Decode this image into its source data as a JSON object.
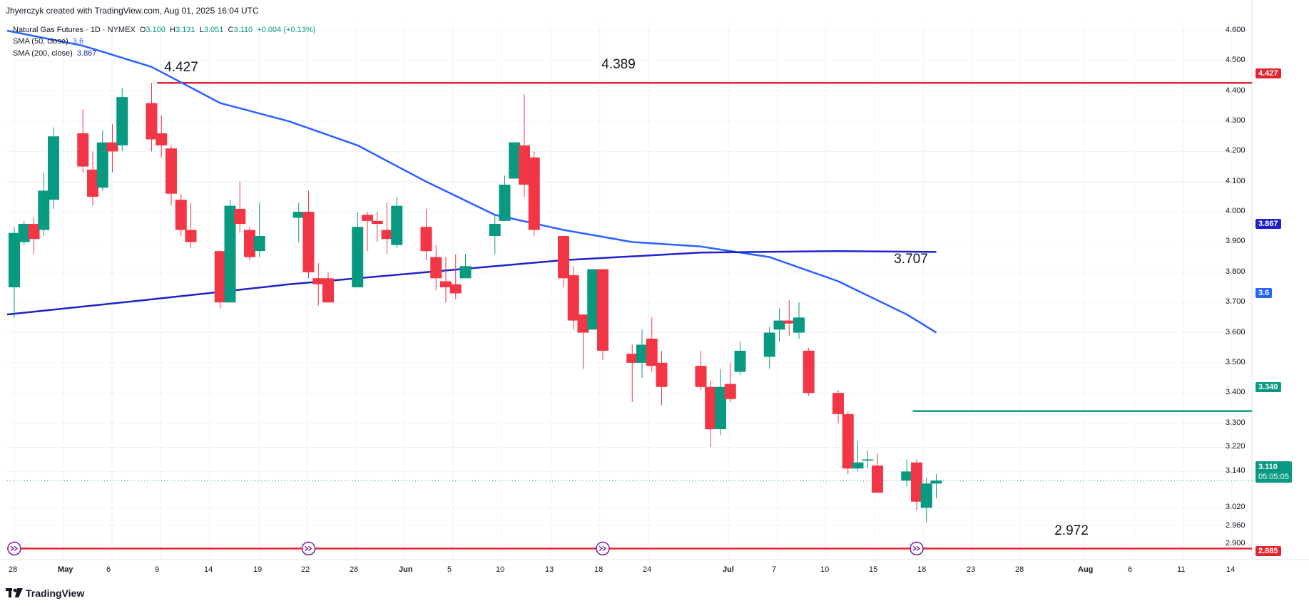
{
  "header": {
    "attribution": "Jhyerczyk created with TradingView.com, Aug 01, 2025 16:04 UTC",
    "symbol": "Natural Gas Futures · 1D · NYMEX",
    "o_label": "O",
    "o_value": "3.100",
    "h_label": "H",
    "h_value": "3.131",
    "l_label": "L",
    "l_value": "3.051",
    "c_label": "C",
    "c_value": "3.110",
    "change": "+0.004 (+0.13%)",
    "sma50_label": "SMA (50, close)",
    "sma50_value": "3.6",
    "sma200_label": "SMA (200, close)",
    "sma200_value": "3.867"
  },
  "footer": {
    "logo_text": "TradingView"
  },
  "colors": {
    "up": "#089981",
    "down": "#f23645",
    "sma50": "#2962ff",
    "sma200": "#1e22c8",
    "level": "#e1252f",
    "target": "#089981"
  },
  "badges": {
    "b4427": "4.427",
    "b3867": "3.867",
    "b36": "3.6",
    "b3340": "3.340",
    "b3110": "3.110",
    "countdown": "05:05:05",
    "b2885": "2.885"
  },
  "annotations": {
    "a1": "4.427",
    "a2": "4.389",
    "a3": "3.707",
    "a4": "2.972"
  },
  "chart_data": {
    "type": "candlestick",
    "ylim": [
      2.885,
      4.65
    ],
    "y_ticks": [
      "4.600",
      "4.500",
      "4.400",
      "4.300",
      "4.200",
      "4.100",
      "4.000",
      "3.900",
      "3.800",
      "3.700",
      "3.600",
      "3.500",
      "3.400",
      "3.300",
      "3.220",
      "3.140",
      "3.020",
      "2.960",
      "2.900"
    ],
    "x_ticks": [
      "28",
      "May",
      "6",
      "9",
      "14",
      "19",
      "22",
      "28",
      "Jun",
      "5",
      "10",
      "13",
      "18",
      "24",
      "Jul",
      "7",
      "10",
      "15",
      "18",
      "23",
      "28",
      "Aug",
      "6",
      "11",
      "14"
    ],
    "candles": [
      {
        "date": "2025-04-28",
        "o": 3.75,
        "h": 3.95,
        "l": 3.65,
        "c": 3.93
      },
      {
        "date": "2025-04-29",
        "o": 3.9,
        "h": 3.97,
        "l": 3.89,
        "c": 3.96
      },
      {
        "date": "2025-04-30",
        "o": 3.96,
        "h": 3.98,
        "l": 3.86,
        "c": 3.91
      },
      {
        "date": "2025-05-01",
        "o": 3.94,
        "h": 4.13,
        "l": 3.92,
        "c": 4.07
      },
      {
        "date": "2025-05-02",
        "o": 4.04,
        "h": 4.28,
        "l": 4.01,
        "c": 4.25
      },
      {
        "date": "2025-05-05",
        "o": 4.26,
        "h": 4.34,
        "l": 4.13,
        "c": 4.15
      },
      {
        "date": "2025-05-06",
        "o": 4.14,
        "h": 4.2,
        "l": 4.02,
        "c": 4.05
      },
      {
        "date": "2025-05-07",
        "o": 4.08,
        "h": 4.27,
        "l": 4.07,
        "c": 4.23
      },
      {
        "date": "2025-05-08",
        "o": 4.23,
        "h": 4.29,
        "l": 4.13,
        "c": 4.2
      },
      {
        "date": "2025-05-09",
        "o": 4.22,
        "h": 4.41,
        "l": 4.2,
        "c": 4.38
      },
      {
        "date": "2025-05-12",
        "o": 4.36,
        "h": 4.427,
        "l": 4.2,
        "c": 4.24
      },
      {
        "date": "2025-05-13",
        "o": 4.26,
        "h": 4.32,
        "l": 4.18,
        "c": 4.22
      },
      {
        "date": "2025-05-14",
        "o": 4.21,
        "h": 4.22,
        "l": 4.02,
        "c": 4.06
      },
      {
        "date": "2025-05-15",
        "o": 4.04,
        "h": 4.06,
        "l": 3.92,
        "c": 3.94
      },
      {
        "date": "2025-05-16",
        "o": 3.94,
        "h": 4.03,
        "l": 3.88,
        "c": 3.9
      },
      {
        "date": "2025-05-19",
        "o": 3.87,
        "h": 3.87,
        "l": 3.68,
        "c": 3.7
      },
      {
        "date": "2025-05-20",
        "o": 3.7,
        "h": 4.04,
        "l": 3.7,
        "c": 4.02
      },
      {
        "date": "2025-05-21",
        "o": 4.01,
        "h": 4.1,
        "l": 3.93,
        "c": 3.96
      },
      {
        "date": "2025-05-22",
        "o": 3.94,
        "h": 3.95,
        "l": 3.84,
        "c": 3.85
      },
      {
        "date": "2025-05-23",
        "o": 3.87,
        "h": 4.03,
        "l": 3.85,
        "c": 3.92
      },
      {
        "date": "2025-05-27",
        "o": 3.98,
        "h": 4.03,
        "l": 3.9,
        "c": 4.0
      },
      {
        "date": "2025-05-28",
        "o": 4.0,
        "h": 4.07,
        "l": 3.78,
        "c": 3.8
      },
      {
        "date": "2025-05-29",
        "o": 3.78,
        "h": 3.83,
        "l": 3.69,
        "c": 3.76
      },
      {
        "date": "2025-05-30",
        "o": 3.78,
        "h": 3.8,
        "l": 3.7,
        "c": 3.7
      },
      {
        "date": "2025-06-02",
        "o": 3.75,
        "h": 4.0,
        "l": 3.75,
        "c": 3.95
      },
      {
        "date": "2025-06-03",
        "o": 3.99,
        "h": 4.0,
        "l": 3.87,
        "c": 3.97
      },
      {
        "date": "2025-06-04",
        "o": 3.97,
        "h": 4.0,
        "l": 3.9,
        "c": 3.96
      },
      {
        "date": "2025-06-05",
        "o": 3.94,
        "h": 4.03,
        "l": 3.86,
        "c": 3.91
      },
      {
        "date": "2025-06-06",
        "o": 3.89,
        "h": 4.05,
        "l": 3.88,
        "c": 4.02
      },
      {
        "date": "2025-06-09",
        "o": 3.95,
        "h": 4.01,
        "l": 3.84,
        "c": 3.87
      },
      {
        "date": "2025-06-10",
        "o": 3.85,
        "h": 3.89,
        "l": 3.74,
        "c": 3.78
      },
      {
        "date": "2025-06-11",
        "o": 3.77,
        "h": 3.85,
        "l": 3.7,
        "c": 3.75
      },
      {
        "date": "2025-06-12",
        "o": 3.76,
        "h": 3.86,
        "l": 3.71,
        "c": 3.73
      },
      {
        "date": "2025-06-13",
        "o": 3.78,
        "h": 3.86,
        "l": 3.78,
        "c": 3.82
      },
      {
        "date": "2025-06-16",
        "o": 3.92,
        "h": 3.99,
        "l": 3.86,
        "c": 3.96
      },
      {
        "date": "2025-06-17",
        "o": 3.97,
        "h": 4.12,
        "l": 3.97,
        "c": 4.09
      },
      {
        "date": "2025-06-18",
        "o": 4.11,
        "h": 4.23,
        "l": 4.11,
        "c": 4.23
      },
      {
        "date": "2025-06-19",
        "o": 4.22,
        "h": 4.389,
        "l": 4.05,
        "c": 4.09
      },
      {
        "date": "2025-06-20",
        "o": 4.18,
        "h": 4.2,
        "l": 3.92,
        "c": 3.94
      },
      {
        "date": "2025-06-23",
        "o": 3.92,
        "h": 3.92,
        "l": 3.75,
        "c": 3.78
      },
      {
        "date": "2025-06-24",
        "o": 3.79,
        "h": 3.82,
        "l": 3.61,
        "c": 3.64
      },
      {
        "date": "2025-06-25",
        "o": 3.66,
        "h": 3.66,
        "l": 3.48,
        "c": 3.6
      },
      {
        "date": "2025-06-26",
        "o": 3.61,
        "h": 3.81,
        "l": 3.61,
        "c": 3.81
      },
      {
        "date": "2025-06-27",
        "o": 3.81,
        "h": 3.81,
        "l": 3.51,
        "c": 3.54
      },
      {
        "date": "2025-06-30",
        "o": 3.53,
        "h": 3.56,
        "l": 3.37,
        "c": 3.5
      },
      {
        "date": "2025-07-01",
        "o": 3.5,
        "h": 3.61,
        "l": 3.45,
        "c": 3.56
      },
      {
        "date": "2025-07-02",
        "o": 3.58,
        "h": 3.65,
        "l": 3.47,
        "c": 3.49
      },
      {
        "date": "2025-07-03",
        "o": 3.5,
        "h": 3.54,
        "l": 3.36,
        "c": 3.42
      },
      {
        "date": "2025-07-07",
        "o": 3.49,
        "h": 3.54,
        "l": 3.41,
        "c": 3.42
      },
      {
        "date": "2025-07-08",
        "o": 3.42,
        "h": 3.44,
        "l": 3.22,
        "c": 3.28
      },
      {
        "date": "2025-07-09",
        "o": 3.28,
        "h": 3.48,
        "l": 3.26,
        "c": 3.42
      },
      {
        "date": "2025-07-10",
        "o": 3.43,
        "h": 3.5,
        "l": 3.37,
        "c": 3.38
      },
      {
        "date": "2025-07-11",
        "o": 3.47,
        "h": 3.57,
        "l": 3.46,
        "c": 3.54
      },
      {
        "date": "2025-07-14",
        "o": 3.52,
        "h": 3.62,
        "l": 3.48,
        "c": 3.6
      },
      {
        "date": "2025-07-15",
        "o": 3.61,
        "h": 3.68,
        "l": 3.57,
        "c": 3.64
      },
      {
        "date": "2025-07-16",
        "o": 3.64,
        "h": 3.707,
        "l": 3.59,
        "c": 3.63
      },
      {
        "date": "2025-07-17",
        "o": 3.6,
        "h": 3.7,
        "l": 3.58,
        "c": 3.65
      },
      {
        "date": "2025-07-18",
        "o": 3.54,
        "h": 3.55,
        "l": 3.39,
        "c": 3.4
      },
      {
        "date": "2025-07-21",
        "o": 3.4,
        "h": 3.41,
        "l": 3.3,
        "c": 3.33
      },
      {
        "date": "2025-07-22",
        "o": 3.33,
        "h": 3.34,
        "l": 3.13,
        "c": 3.15
      },
      {
        "date": "2025-07-23",
        "o": 3.15,
        "h": 3.24,
        "l": 3.14,
        "c": 3.17
      },
      {
        "date": "2025-07-24",
        "o": 3.18,
        "h": 3.21,
        "l": 3.15,
        "c": 3.18
      },
      {
        "date": "2025-07-25",
        "o": 3.16,
        "h": 3.2,
        "l": 3.07,
        "c": 3.07
      },
      {
        "date": "2025-07-28",
        "o": 3.11,
        "h": 3.18,
        "l": 3.09,
        "c": 3.14
      },
      {
        "date": "2025-07-29",
        "o": 3.17,
        "h": 3.18,
        "l": 3.01,
        "c": 3.04
      },
      {
        "date": "2025-07-30",
        "o": 3.02,
        "h": 3.12,
        "l": 2.972,
        "c": 3.1
      },
      {
        "date": "2025-07-31",
        "o": 3.1,
        "h": 3.131,
        "l": 3.051,
        "c": 3.11
      }
    ],
    "sma50": [
      {
        "date": "2025-04-28",
        "v": 4.6
      },
      {
        "date": "2025-05-05",
        "v": 4.55
      },
      {
        "date": "2025-05-12",
        "v": 4.48
      },
      {
        "date": "2025-05-19",
        "v": 4.36
      },
      {
        "date": "2025-05-26",
        "v": 4.3
      },
      {
        "date": "2025-06-02",
        "v": 4.22
      },
      {
        "date": "2025-06-09",
        "v": 4.1
      },
      {
        "date": "2025-06-16",
        "v": 3.99
      },
      {
        "date": "2025-06-23",
        "v": 3.94
      },
      {
        "date": "2025-06-30",
        "v": 3.9
      },
      {
        "date": "2025-07-07",
        "v": 3.885
      },
      {
        "date": "2025-07-14",
        "v": 3.85
      },
      {
        "date": "2025-07-21",
        "v": 3.77
      },
      {
        "date": "2025-07-28",
        "v": 3.66
      },
      {
        "date": "2025-07-31",
        "v": 3.6
      }
    ],
    "sma200": [
      {
        "date": "2025-04-28",
        "v": 3.66
      },
      {
        "date": "2025-05-12",
        "v": 3.71
      },
      {
        "date": "2025-05-26",
        "v": 3.76
      },
      {
        "date": "2025-06-09",
        "v": 3.8
      },
      {
        "date": "2025-06-23",
        "v": 3.84
      },
      {
        "date": "2025-07-07",
        "v": 3.865
      },
      {
        "date": "2025-07-21",
        "v": 3.87
      },
      {
        "date": "2025-07-31",
        "v": 3.867
      }
    ],
    "levels": [
      {
        "name": "resistance",
        "value": 4.427,
        "from": "2025-05-13",
        "to": "right-edge"
      },
      {
        "name": "support",
        "value": 2.885,
        "from": "left-edge",
        "to": "right-edge"
      },
      {
        "name": "target",
        "value": 3.34,
        "from": "2025-07-31",
        "to": "right-edge"
      },
      {
        "name": "last",
        "value": 3.11,
        "from": "left-edge",
        "to": "right-edge"
      }
    ],
    "markers": [
      "2025-04-28",
      "2025-05-28",
      "2025-06-27",
      "2025-07-29"
    ]
  }
}
